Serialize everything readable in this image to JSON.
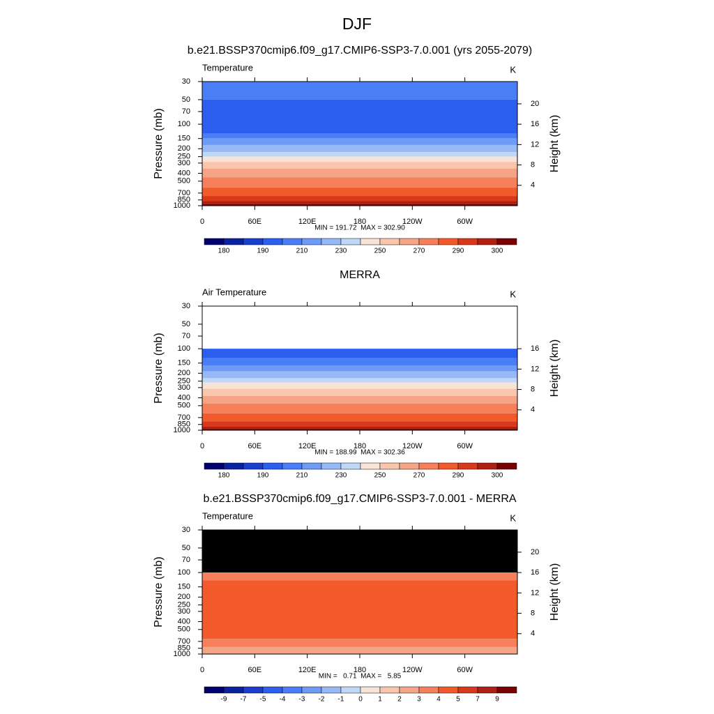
{
  "title": "DJF",
  "chart_data": [
    {
      "type": "contour",
      "title": "b.e21.BSSP370cmip6.f09_g17.CMIP6-SSP3-7.0.001 (yrs 2055-2079)",
      "left_label": "Temperature",
      "right_label": "K",
      "ylabel": "Pressure (mb)",
      "y2label": "Height (km)",
      "xlim": [
        0,
        360
      ],
      "xticks": [
        0,
        {
          "value": 60,
          "label": "60E"
        },
        {
          "value": 120,
          "label": "120E"
        },
        180,
        {
          "value": 240,
          "label": "120W"
        },
        {
          "value": 300,
          "label": "60W"
        }
      ],
      "ylim": [
        30,
        1000
      ],
      "ylog": true,
      "yticks": [
        30,
        50,
        70,
        100,
        150,
        200,
        250,
        300,
        400,
        500,
        700,
        850,
        1000
      ],
      "y2lim": [
        24.37,
        0
      ],
      "y2ticks": [
        4,
        8,
        12,
        16,
        20
      ],
      "stats": "MIN = 191.72  MAX = 302.90",
      "bands": [
        {
          "top": 30,
          "bottom": 50,
          "color": "#4a7ef7"
        },
        {
          "top": 50,
          "bottom": 130,
          "color": "#2c5ff0"
        },
        {
          "top": 130,
          "bottom": 150,
          "color": "#4a7ef7"
        },
        {
          "top": 150,
          "bottom": 180,
          "color": "#6e9bf5"
        },
        {
          "top": 180,
          "bottom": 220,
          "color": "#97b9f7"
        },
        {
          "top": 220,
          "bottom": 250,
          "color": "#c0d8f7"
        },
        {
          "top": 250,
          "bottom": 290,
          "color": "#f7e4d7"
        },
        {
          "top": 290,
          "bottom": 350,
          "color": "#f7c6ad"
        },
        {
          "top": 350,
          "bottom": 450,
          "color": "#f5a585"
        },
        {
          "top": 450,
          "bottom": 600,
          "color": "#f5805b"
        },
        {
          "top": 600,
          "bottom": 760,
          "color": "#f25a2b"
        },
        {
          "top": 760,
          "bottom": 880,
          "color": "#d9381a"
        },
        {
          "top": 880,
          "bottom": 960,
          "color": "#b02012"
        },
        {
          "top": 960,
          "bottom": 1000,
          "color": "#780000"
        }
      ],
      "colorbar": {
        "colors": [
          "#00006e",
          "#0a21a0",
          "#1a3fcf",
          "#2c5ff0",
          "#4a7ef7",
          "#6e9bf5",
          "#97b9f7",
          "#c0d8f7",
          "#f7e4d7",
          "#f7c6ad",
          "#f5a585",
          "#f5805b",
          "#f25a2b",
          "#d9381a",
          "#b02012",
          "#780000"
        ],
        "ticks": [
          180,
          190,
          210,
          230,
          250,
          270,
          290,
          300
        ],
        "tick_stride": 2
      }
    },
    {
      "type": "contour",
      "title": "MERRA",
      "left_label": "Air Temperature",
      "right_label": "K",
      "ylabel": "Pressure (mb)",
      "y2label": "Height (km)",
      "xlim": [
        0,
        360
      ],
      "xticks": [
        0,
        {
          "value": 60,
          "label": "60E"
        },
        {
          "value": 120,
          "label": "120E"
        },
        180,
        {
          "value": 240,
          "label": "120W"
        },
        {
          "value": 300,
          "label": "60W"
        }
      ],
      "ylim": [
        30,
        1000
      ],
      "ylog": true,
      "yticks": [
        30,
        50,
        70,
        100,
        150,
        200,
        250,
        300,
        400,
        500,
        700,
        850,
        1000
      ],
      "y2lim": [
        24.37,
        0
      ],
      "y2ticks": [
        4,
        8,
        12,
        16
      ],
      "stats": "MIN = 188.99  MAX = 302.36",
      "bands": [
        {
          "top": 100,
          "bottom": 130,
          "color": "#2c5ff0"
        },
        {
          "top": 130,
          "bottom": 160,
          "color": "#4a7ef7"
        },
        {
          "top": 160,
          "bottom": 190,
          "color": "#6e9bf5"
        },
        {
          "top": 190,
          "bottom": 230,
          "color": "#97b9f7"
        },
        {
          "top": 230,
          "bottom": 260,
          "color": "#c0d8f7"
        },
        {
          "top": 260,
          "bottom": 310,
          "color": "#f7e4d7"
        },
        {
          "top": 310,
          "bottom": 380,
          "color": "#f7c6ad"
        },
        {
          "top": 380,
          "bottom": 470,
          "color": "#f5a585"
        },
        {
          "top": 470,
          "bottom": 620,
          "color": "#f5805b"
        },
        {
          "top": 620,
          "bottom": 780,
          "color": "#f25a2b"
        },
        {
          "top": 780,
          "bottom": 900,
          "color": "#d9381a"
        },
        {
          "top": 900,
          "bottom": 970,
          "color": "#b02012"
        },
        {
          "top": 970,
          "bottom": 1000,
          "color": "#780000"
        }
      ],
      "colorbar": {
        "colors": [
          "#00006e",
          "#0a21a0",
          "#1a3fcf",
          "#2c5ff0",
          "#4a7ef7",
          "#6e9bf5",
          "#97b9f7",
          "#c0d8f7",
          "#f7e4d7",
          "#f7c6ad",
          "#f5a585",
          "#f5805b",
          "#f25a2b",
          "#d9381a",
          "#b02012",
          "#780000"
        ],
        "ticks": [
          180,
          190,
          210,
          230,
          250,
          270,
          290,
          300
        ],
        "tick_stride": 2
      }
    },
    {
      "type": "contour",
      "title": "b.e21.BSSP370cmip6.f09_g17.CMIP6-SSP3-7.0.001 - MERRA",
      "left_label": "Temperature",
      "right_label": "K",
      "ylabel": "Pressure (mb)",
      "y2label": "Height (km)",
      "xlim": [
        0,
        360
      ],
      "xticks": [
        0,
        {
          "value": 60,
          "label": "60E"
        },
        {
          "value": 120,
          "label": "120E"
        },
        180,
        {
          "value": 240,
          "label": "120W"
        },
        {
          "value": 300,
          "label": "60W"
        }
      ],
      "ylim": [
        30,
        1000
      ],
      "ylog": true,
      "yticks": [
        30,
        50,
        70,
        100,
        150,
        200,
        250,
        300,
        400,
        500,
        700,
        850,
        1000
      ],
      "y2lim": [
        24.37,
        0
      ],
      "y2ticks": [
        4,
        8,
        12,
        16,
        20
      ],
      "stats": "MIN =   0.71  MAX =   5.85",
      "bands": [
        {
          "top": 30,
          "bottom": 100,
          "color": "#000000"
        },
        {
          "top": 100,
          "bottom": 125,
          "color": "#f5805b"
        },
        {
          "top": 125,
          "bottom": 650,
          "color": "#f25a2b"
        },
        {
          "top": 650,
          "bottom": 820,
          "color": "#f5805b"
        },
        {
          "top": 820,
          "bottom": 1000,
          "color": "#f5a585"
        }
      ],
      "colorbar": {
        "colors": [
          "#00006e",
          "#0a21a0",
          "#1a3fcf",
          "#2c5ff0",
          "#4a7ef7",
          "#6e9bf5",
          "#97b9f7",
          "#c0d8f7",
          "#f7e4d7",
          "#f7c6ad",
          "#f5a585",
          "#f5805b",
          "#f25a2b",
          "#d9381a",
          "#b02012",
          "#780000"
        ],
        "ticks": [
          -9,
          -7,
          -5,
          -4,
          -3,
          -2,
          -1,
          0,
          1,
          2,
          3,
          4,
          5,
          7,
          9
        ],
        "tick_stride": 1
      }
    }
  ]
}
